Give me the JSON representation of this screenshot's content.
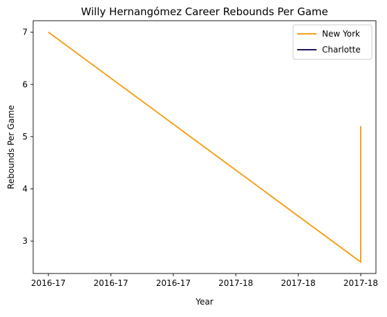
{
  "chart_data": {
    "type": "line",
    "title": "Willy Hernangómez Career Rebounds Per Game",
    "xlabel": "Year",
    "ylabel": "Rebounds Per Game",
    "x_tick_labels": [
      "2016-17",
      "2016-17",
      "2016-17",
      "2017-18",
      "2017-18",
      "2017-18"
    ],
    "y_ticks": [
      3,
      4,
      5,
      6,
      7
    ],
    "ylim": [
      2.38,
      7.22
    ],
    "grid": false,
    "legend_position": "top-right",
    "series": [
      {
        "name": "New York",
        "color": "#F5A01A",
        "points": [
          {
            "x": 0,
            "y": 7.0
          },
          {
            "x": 5,
            "y": 2.6
          },
          {
            "x": 5,
            "y": 5.2
          }
        ]
      },
      {
        "name": "Charlotte",
        "color": "#1D1160",
        "points": []
      }
    ]
  }
}
